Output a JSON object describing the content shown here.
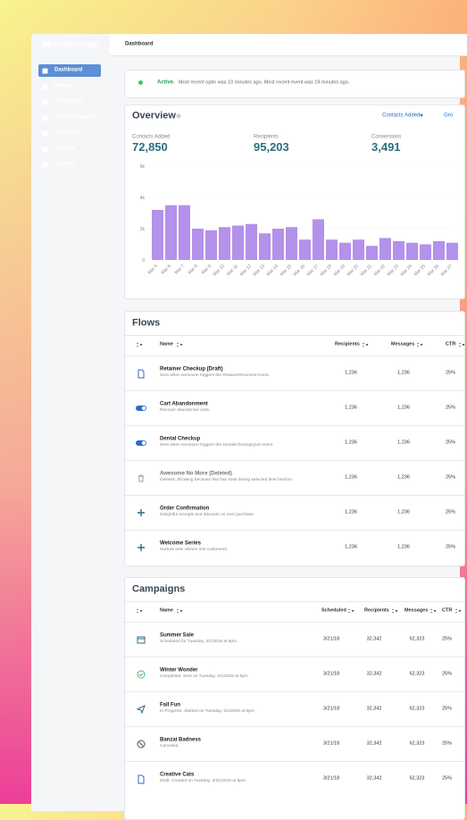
{
  "sidebar": {
    "brand": "ShopMessage",
    "nav": [
      "Dashboard",
      "Flows",
      "Campaigns",
      "Growth Plugins",
      "Live View",
      "Settings",
      "Support"
    ]
  },
  "topbar": {
    "title": "Dashboard"
  },
  "status": {
    "state": "Active.",
    "message": "Most recent optin was 10 minutes ago. Most recent event was 19 minutes ago."
  },
  "overview": {
    "title": "Overview",
    "selector": "Contacts Added",
    "extra": "Gro",
    "stats": [
      {
        "label": "Contacts Added",
        "value": "72,850"
      },
      {
        "label": "Recipients",
        "value": "95,203"
      },
      {
        "label": "Conversions",
        "value": "3,491"
      }
    ]
  },
  "chart_data": {
    "type": "bar",
    "categories": [
      "Mar 5",
      "Mar 6",
      "Mar 7",
      "Mar 8",
      "Mar 9",
      "Mar 10",
      "Mar 11",
      "Mar 12",
      "Mar 13",
      "Mar 14",
      "Mar 15",
      "Mar 16",
      "Mar 17",
      "Mar 18",
      "Mar 19",
      "Mar 20",
      "Mar 21",
      "Mar 22",
      "Mar 23",
      "Mar 24",
      "Mar 25",
      "Mar 26",
      "Mar 27"
    ],
    "values": [
      3200,
      3500,
      3500,
      2000,
      1900,
      2100,
      2200,
      2300,
      1700,
      2000,
      2100,
      1300,
      2600,
      1300,
      1100,
      1300,
      900,
      1400,
      1200,
      1100,
      1000,
      1200,
      1100
    ],
    "color": "#b491ea",
    "ylim": [
      0,
      6000
    ],
    "yticks": [
      0,
      {
        "value": 2000,
        "label": "2k"
      },
      {
        "value": 4000,
        "label": "4k"
      },
      {
        "value": 6000,
        "label": "6k"
      }
    ]
  },
  "flows": {
    "title": "Flows",
    "columns": [
      "Name",
      "Recipients",
      "Messages",
      "CTR"
    ],
    "rows": [
      {
        "name": "Retainer Checkup (Draft)",
        "description": "Sent when someone triggers the RetainerReceived event.",
        "recipients": "1,236",
        "messages": "1,236",
        "ctr": "25%"
      },
      {
        "name": "Cart Abandonment",
        "description": "Recover abandoned carts.",
        "recipients": "1,236",
        "messages": "1,236",
        "ctr": "25%"
      },
      {
        "name": "Dental Checkup",
        "description": "Sent when someone triggers the DentalCheckupQuiz event.",
        "recipients": "1,236",
        "messages": "1,236",
        "ctr": "25%"
      },
      {
        "name": "Awesome No More (Deleted)",
        "description": "Deleted. Showing because this has stats during selected time horizon.",
        "recipients": "1,236",
        "messages": "1,236",
        "ctr": "25%"
      },
      {
        "name": "Order Confirmation",
        "description": "Delightful receipts and discount on next purchase.",
        "recipients": "1,236",
        "messages": "1,236",
        "ctr": "25%"
      },
      {
        "name": "Welcome Series",
        "description": "Nurture new visitors into customers.",
        "recipients": "1,236",
        "messages": "1,236",
        "ctr": "25%"
      }
    ]
  },
  "campaigns": {
    "title": "Campaigns",
    "columns": [
      "Name",
      "Scheduled",
      "Recipients",
      "Messages",
      "CTR"
    ],
    "rows": [
      {
        "name": "Summer Sale",
        "description": "Scheduled for Tuesday, 3/1/2018 at 5pm",
        "scheduled": "3/21/18",
        "recipients": "32,342",
        "messages": "62,323",
        "ctr": "25%"
      },
      {
        "name": "Winter Wonder",
        "description": "Completed. Sent on Tuesday, 3/1/2018 at 5pm",
        "scheduled": "3/21/18",
        "recipients": "32,342",
        "messages": "62,323",
        "ctr": "25%"
      },
      {
        "name": "Fall Fun",
        "description": "In Progress. Started on Tuesday, 3/1/2018 at 5pm",
        "scheduled": "3/21/18",
        "recipients": "32,342",
        "messages": "62,323",
        "ctr": "25%"
      },
      {
        "name": "Banzai Badness",
        "description": "Canceled",
        "scheduled": "3/21/18",
        "recipients": "32,342",
        "messages": "62,323",
        "ctr": "25%"
      },
      {
        "name": "Creative Cats",
        "description": "Draft. Created on Tuesday, 2/21/2018 at 5pm.",
        "scheduled": "3/21/18",
        "recipients": "32,342",
        "messages": "62,323",
        "ctr": "25%"
      }
    ]
  }
}
